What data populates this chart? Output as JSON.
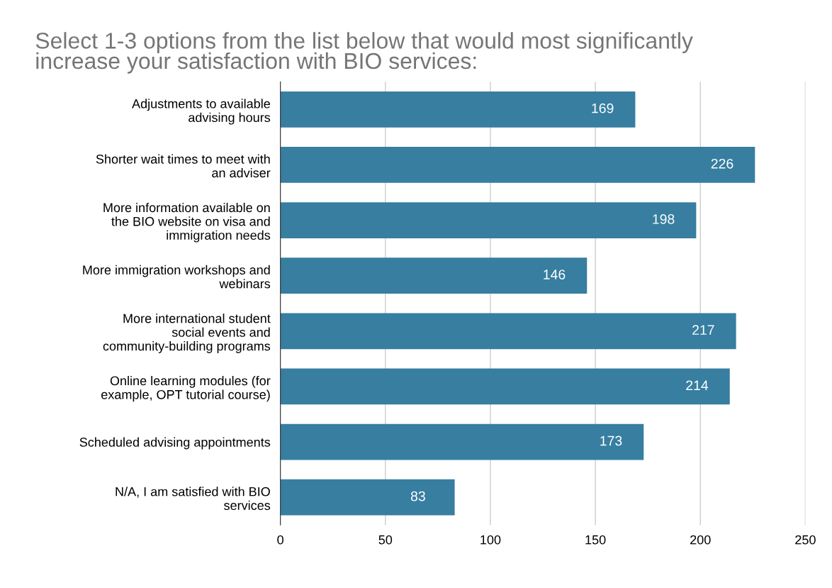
{
  "chart_data": {
    "type": "bar",
    "orientation": "horizontal",
    "title": "Select 1-3 options from the list below that would most significantly increase your satisfaction with BIO services:",
    "categories": [
      "Adjustments to available advising hours",
      "Shorter wait times to meet with an adviser",
      "More information available on the BIO website on visa and immigration needs",
      "More immigration workshops and webinars",
      "More international student social events and community-building programs",
      "Online learning modules (for example, OPT tutorial course)",
      "Scheduled advising appointments",
      "N/A, I am satisfied with BIO services"
    ],
    "values": [
      169,
      226,
      198,
      146,
      217,
      214,
      173,
      83
    ],
    "color": "#377ea0",
    "xlim": [
      0,
      250
    ],
    "xticks": [
      0,
      50,
      100,
      150,
      200,
      250
    ],
    "grid": "x",
    "data_labels": true
  }
}
